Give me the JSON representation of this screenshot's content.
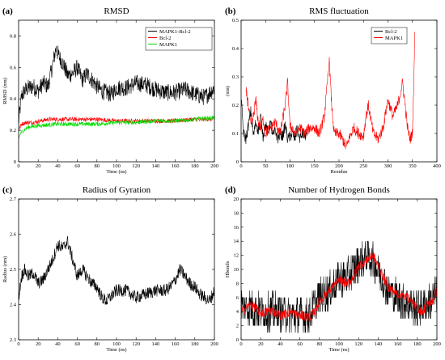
{
  "chart_data": [
    {
      "panel": "(a)",
      "type": "line",
      "title": "RMSD",
      "xlabel": "Time (ns)",
      "ylabel": "RMSD (nm)",
      "xlim": [
        0,
        200
      ],
      "ylim": [
        0,
        0.9
      ],
      "xticks": [
        "0",
        "20",
        "40",
        "60",
        "80",
        "100",
        "120",
        "140",
        "160",
        "180",
        "200"
      ],
      "yticks": [
        "0",
        "0.2",
        "0.4",
        "0.6",
        "0.8"
      ],
      "ytick_values": [
        0,
        0.2,
        0.4,
        0.6,
        0.8
      ],
      "legend_position": "top-right",
      "grid": false,
      "series": [
        {
          "name": "MAPK1-Bcl-2",
          "color": "#000000",
          "noise": 0.055,
          "x": [
            0,
            3,
            6,
            10,
            15,
            20,
            25,
            30,
            35,
            38,
            42,
            45,
            50,
            55,
            60,
            65,
            70,
            75,
            80,
            85,
            90,
            95,
            100,
            110,
            120,
            130,
            140,
            150,
            160,
            170,
            180,
            185,
            190,
            195,
            200
          ],
          "y": [
            0.25,
            0.42,
            0.45,
            0.47,
            0.48,
            0.45,
            0.5,
            0.48,
            0.62,
            0.72,
            0.66,
            0.63,
            0.55,
            0.56,
            0.6,
            0.52,
            0.56,
            0.52,
            0.48,
            0.45,
            0.44,
            0.43,
            0.47,
            0.47,
            0.5,
            0.49,
            0.46,
            0.44,
            0.44,
            0.46,
            0.43,
            0.42,
            0.41,
            0.44,
            0.47
          ]
        },
        {
          "name": "Bcl-2",
          "color": "#ff0000",
          "noise": 0.014,
          "x": [
            0,
            3,
            8,
            15,
            30,
            50,
            80,
            100,
            130,
            160,
            180,
            200
          ],
          "y": [
            0.2,
            0.24,
            0.25,
            0.25,
            0.27,
            0.27,
            0.27,
            0.26,
            0.26,
            0.26,
            0.27,
            0.27
          ]
        },
        {
          "name": "MAPK1",
          "color": "#00dd00",
          "noise": 0.014,
          "x": [
            0,
            2,
            5,
            10,
            20,
            40,
            60,
            80,
            100,
            120,
            140,
            160,
            180,
            200
          ],
          "y": [
            0.15,
            0.18,
            0.2,
            0.22,
            0.23,
            0.24,
            0.24,
            0.24,
            0.25,
            0.25,
            0.26,
            0.26,
            0.27,
            0.28
          ]
        }
      ]
    },
    {
      "panel": "(b)",
      "type": "line",
      "title": "RMS fluctuation",
      "xlabel": "Residue",
      "ylabel": "(nm)",
      "xlim": [
        0,
        400
      ],
      "ylim": [
        0,
        0.5
      ],
      "xticks": [
        "0",
        "50",
        "100",
        "150",
        "200",
        "250",
        "300",
        "350",
        "400"
      ],
      "yticks": [
        "0",
        "0.1",
        "0.2",
        "0.3",
        "0.4",
        "0.5"
      ],
      "ytick_values": [
        0,
        0.1,
        0.2,
        0.3,
        0.4,
        0.5
      ],
      "legend_position": "top-left",
      "grid": false,
      "series": [
        {
          "name": "Bcl-2",
          "color": "#000000",
          "noise": 0.02,
          "step": 1,
          "x": [
            1,
            5,
            10,
            15,
            20,
            25,
            30,
            35,
            40,
            45,
            50,
            55,
            60,
            65,
            70,
            75,
            80,
            85,
            90,
            95,
            100,
            105,
            110,
            115,
            120,
            125,
            130,
            135
          ],
          "y": [
            0.2,
            0.1,
            0.08,
            0.13,
            0.18,
            0.09,
            0.14,
            0.11,
            0.16,
            0.09,
            0.13,
            0.1,
            0.14,
            0.09,
            0.11,
            0.08,
            0.1,
            0.09,
            0.13,
            0.08,
            0.09,
            0.1,
            0.08,
            0.12,
            0.08,
            0.1,
            0.09,
            0.1
          ]
        },
        {
          "name": "MAPK1",
          "color": "#ff0000",
          "noise": 0.02,
          "step": 1,
          "x": [
            10,
            15,
            20,
            25,
            30,
            35,
            40,
            45,
            50,
            55,
            60,
            70,
            80,
            90,
            95,
            100,
            105,
            110,
            120,
            130,
            140,
            150,
            160,
            170,
            175,
            180,
            185,
            190,
            200,
            210,
            215,
            220,
            230,
            240,
            250,
            255,
            260,
            270,
            280,
            290,
            300,
            310,
            320,
            330,
            340,
            345,
            350,
            353,
            355
          ],
          "y": [
            0.25,
            0.2,
            0.12,
            0.16,
            0.22,
            0.14,
            0.12,
            0.15,
            0.1,
            0.11,
            0.12,
            0.14,
            0.1,
            0.2,
            0.28,
            0.12,
            0.12,
            0.1,
            0.12,
            0.1,
            0.12,
            0.12,
            0.1,
            0.16,
            0.25,
            0.36,
            0.2,
            0.1,
            0.1,
            0.07,
            0.05,
            0.08,
            0.12,
            0.1,
            0.09,
            0.16,
            0.2,
            0.1,
            0.08,
            0.12,
            0.22,
            0.16,
            0.2,
            0.28,
            0.12,
            0.08,
            0.1,
            0.3,
            0.46
          ]
        }
      ]
    },
    {
      "panel": "(c)",
      "type": "line",
      "title": "Radius of Gyration",
      "xlabel": "Time (ns)",
      "ylabel": "Radius (nm)",
      "xlim": [
        0,
        200
      ],
      "ylim": [
        2.3,
        2.7
      ],
      "xticks": [
        "0",
        "20",
        "40",
        "60",
        "80",
        "100",
        "120",
        "140",
        "160",
        "180",
        "200"
      ],
      "yticks": [
        "2.3",
        "2.4",
        "2.5",
        "2.6",
        "2.7"
      ],
      "ytick_values": [
        2.3,
        2.4,
        2.5,
        2.6,
        2.7
      ],
      "grid": false,
      "series": [
        {
          "name": "",
          "color": "#000000",
          "noise": 0.018,
          "x": [
            0,
            3,
            6,
            10,
            15,
            20,
            25,
            30,
            35,
            40,
            45,
            50,
            55,
            60,
            65,
            70,
            75,
            80,
            85,
            90,
            100,
            110,
            120,
            130,
            140,
            150,
            155,
            160,
            165,
            170,
            175,
            180,
            185,
            190,
            195,
            200
          ],
          "y": [
            2.42,
            2.48,
            2.5,
            2.48,
            2.49,
            2.46,
            2.47,
            2.5,
            2.53,
            2.57,
            2.56,
            2.58,
            2.53,
            2.48,
            2.5,
            2.48,
            2.46,
            2.45,
            2.42,
            2.41,
            2.44,
            2.44,
            2.42,
            2.43,
            2.44,
            2.44,
            2.45,
            2.47,
            2.5,
            2.48,
            2.46,
            2.45,
            2.43,
            2.42,
            2.41,
            2.44
          ]
        }
      ]
    },
    {
      "panel": "(d)",
      "type": "line",
      "title": "Number of Hydrogen Bonds",
      "xlabel": "Time (ns)",
      "ylabel": "Hbonds",
      "xlim": [
        0,
        200
      ],
      "ylim": [
        0,
        20
      ],
      "xticks": [
        "0",
        "20",
        "40",
        "60",
        "80",
        "100",
        "120",
        "140",
        "160",
        "180",
        "200"
      ],
      "yticks": [
        "0",
        "2",
        "4",
        "6",
        "8",
        "10",
        "12",
        "14",
        "16",
        "18",
        "20"
      ],
      "ytick_values": [
        0,
        2,
        4,
        6,
        8,
        10,
        12,
        14,
        16,
        18,
        20
      ],
      "grid": false,
      "series": [
        {
          "name": "",
          "color": "#000000",
          "noise": 2.6,
          "integer": true,
          "x": [
            0,
            10,
            20,
            30,
            40,
            50,
            60,
            70,
            75,
            80,
            90,
            100,
            110,
            120,
            130,
            140,
            150,
            160,
            170,
            180,
            190,
            200
          ],
          "y": [
            5,
            4.5,
            4,
            4,
            4,
            3.5,
            3.5,
            3.5,
            5,
            6,
            7,
            8.5,
            9,
            11,
            12,
            10,
            7,
            6,
            5,
            4.5,
            5,
            6.5
          ]
        },
        {
          "name": "",
          "color": "#ff0000",
          "noise": 0.7,
          "x": [
            0,
            5,
            10,
            15,
            20,
            25,
            30,
            40,
            50,
            60,
            70,
            75,
            80,
            90,
            100,
            110,
            115,
            120,
            130,
            135,
            140,
            150,
            160,
            170,
            180,
            185,
            190,
            195,
            200
          ],
          "y": [
            4,
            4.5,
            5,
            4.5,
            3.8,
            4,
            4.2,
            3.5,
            4,
            3.5,
            3.2,
            4,
            5.5,
            7,
            8.5,
            8,
            9,
            10.5,
            11.5,
            12,
            10.5,
            7.5,
            6.5,
            6,
            4.5,
            4,
            5,
            5.5,
            7
          ]
        }
      ]
    }
  ]
}
